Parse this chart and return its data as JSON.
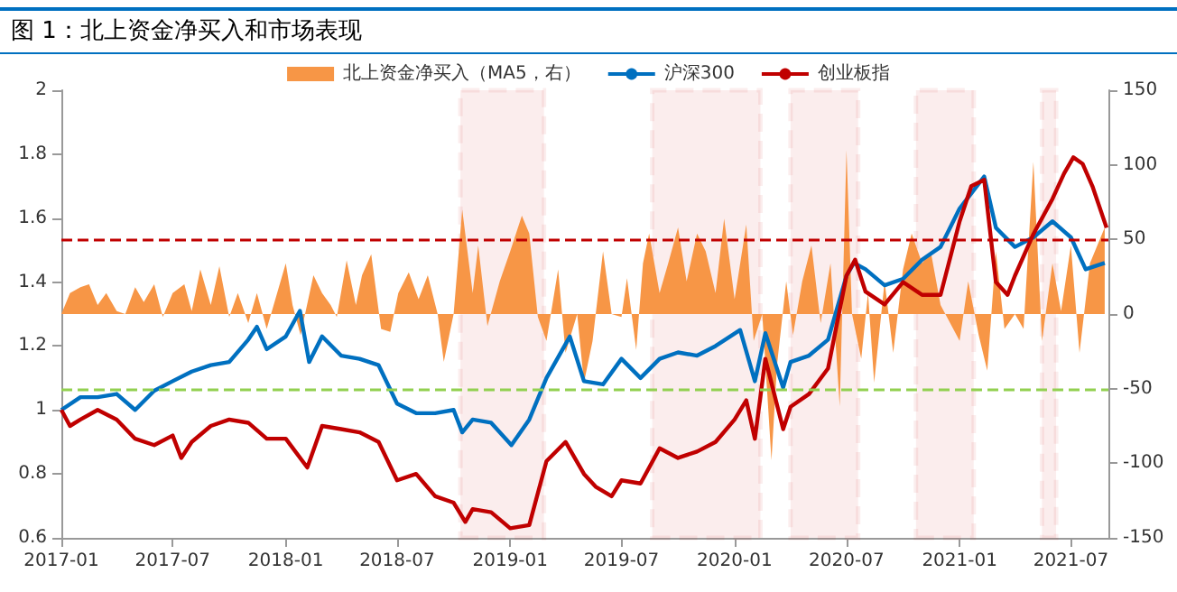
{
  "chart_data": {
    "type": "line",
    "title": "图 1：北上资金净买入和市场表现",
    "legend": "top",
    "grid": false,
    "marker": "none",
    "xlim": [
      "2017-01-01",
      "2021-08-31"
    ],
    "xticks": [
      "2017-01",
      "2017-07",
      "2018-01",
      "2018-07",
      "2019-01",
      "2019-07",
      "2020-01",
      "2020-07",
      "2021-01",
      "2021-07"
    ],
    "ylim": [
      0.6,
      2
    ],
    "yticks": [
      0.6,
      0.8,
      1,
      1.2,
      1.4,
      1.6,
      1.8,
      2
    ],
    "y2lim": [
      -150,
      150
    ],
    "y2ticks": [
      -150,
      -100,
      -50,
      0,
      50,
      100,
      150
    ],
    "series": [
      {
        "name": "北上资金净买入（MA5，右）",
        "type": "area",
        "axis": "y2",
        "color": "#f79646",
        "x": [
          "2017-01-01",
          "2017-01-15",
          "2017-02-01",
          "2017-02-15",
          "2017-03-01",
          "2017-03-15",
          "2017-04-01",
          "2017-04-15",
          "2017-05-01",
          "2017-05-15",
          "2017-06-01",
          "2017-06-15",
          "2017-07-01",
          "2017-07-20",
          "2017-08-01",
          "2017-08-15",
          "2017-09-01",
          "2017-09-15",
          "2017-10-01",
          "2017-10-15",
          "2017-11-01",
          "2017-11-15",
          "2017-12-01",
          "2018-01-01",
          "2018-01-12",
          "2018-01-25",
          "2018-02-15",
          "2018-03-01",
          "2018-03-15",
          "2018-03-25",
          "2018-04-10",
          "2018-04-25",
          "2018-05-05",
          "2018-05-20",
          "2018-06-05",
          "2018-06-20",
          "2018-07-03",
          "2018-07-20",
          "2018-08-05",
          "2018-08-20",
          "2018-09-05",
          "2018-09-15",
          "2018-10-01",
          "2018-10-15",
          "2018-11-01",
          "2018-11-10",
          "2018-11-25",
          "2018-12-15",
          "2019-01-01",
          "2019-01-20",
          "2019-02-01",
          "2019-02-15",
          "2019-03-01",
          "2019-03-20",
          "2019-04-01",
          "2019-04-20",
          "2019-05-01",
          "2019-05-15",
          "2019-06-01",
          "2019-06-15",
          "2019-07-01",
          "2019-07-10",
          "2019-07-25",
          "2019-08-05",
          "2019-08-15",
          "2019-09-01",
          "2019-09-15",
          "2019-10-01",
          "2019-10-15",
          "2019-11-01",
          "2019-11-15",
          "2019-12-01",
          "2019-12-15",
          "2020-01-01",
          "2020-01-20",
          "2020-02-01",
          "2020-02-15",
          "2020-03-01",
          "2020-03-10",
          "2020-03-25",
          "2020-04-05",
          "2020-04-20",
          "2020-05-05",
          "2020-05-20",
          "2020-06-05",
          "2020-06-20",
          "2020-07-01",
          "2020-07-10",
          "2020-07-25",
          "2020-08-05",
          "2020-08-15",
          "2020-09-01",
          "2020-09-15",
          "2020-10-01",
          "2020-10-15",
          "2020-11-01",
          "2020-11-15",
          "2020-12-01",
          "2021-01-01",
          "2021-01-15",
          "2021-02-01",
          "2021-02-15",
          "2021-03-01",
          "2021-03-15",
          "2021-04-01",
          "2021-04-15",
          "2021-05-01",
          "2021-05-15",
          "2021-06-01",
          "2021-06-15",
          "2021-07-01",
          "2021-07-15",
          "2021-08-01",
          "2021-08-25"
        ],
        "values": [
          0,
          14,
          18,
          20,
          6,
          14,
          2,
          0,
          18,
          8,
          20,
          -2,
          14,
          20,
          2,
          30,
          6,
          32,
          -2,
          14,
          -6,
          14,
          -10,
          34,
          6,
          -14,
          26,
          14,
          6,
          -2,
          36,
          6,
          26,
          40,
          -10,
          -12,
          14,
          28,
          10,
          26,
          0,
          -32,
          0,
          70,
          14,
          46,
          -8,
          22,
          42,
          66,
          54,
          -2,
          -18,
          30,
          -26,
          0,
          -46,
          -18,
          42,
          0,
          -2,
          24,
          -24,
          34,
          54,
          14,
          34,
          58,
          22,
          54,
          42,
          14,
          64,
          10,
          60,
          -18,
          0,
          -98,
          -34,
          22,
          -14,
          22,
          46,
          -6,
          34,
          -62,
          110,
          0,
          -30,
          14,
          -46,
          22,
          -26,
          30,
          54,
          34,
          42,
          6,
          -18,
          22,
          -14,
          -38,
          42,
          -10,
          0,
          -10,
          102,
          -18,
          34,
          2,
          46,
          -26,
          34,
          58
        ]
      },
      {
        "name": "沪深300",
        "color": "#0070c0",
        "x": [
          "2017-01-01",
          "2017-02-01",
          "2017-03-01",
          "2017-04-01",
          "2017-05-01",
          "2017-06-01",
          "2017-07-01",
          "2017-08-01",
          "2017-09-01",
          "2017-10-01",
          "2017-11-01",
          "2017-11-15",
          "2017-12-01",
          "2018-01-01",
          "2018-01-24",
          "2018-02-08",
          "2018-03-01",
          "2018-04-01",
          "2018-05-01",
          "2018-06-01",
          "2018-07-01",
          "2018-08-01",
          "2018-09-01",
          "2018-10-01",
          "2018-10-15",
          "2018-11-01",
          "2018-12-01",
          "2019-01-03",
          "2019-02-01",
          "2019-03-01",
          "2019-04-08",
          "2019-05-01",
          "2019-06-01",
          "2019-07-01",
          "2019-08-01",
          "2019-09-01",
          "2019-10-01",
          "2019-11-01",
          "2019-12-01",
          "2020-01-10",
          "2020-02-03",
          "2020-02-20",
          "2020-03-20",
          "2020-04-01",
          "2020-05-01",
          "2020-06-01",
          "2020-07-01",
          "2020-07-13",
          "2020-08-01",
          "2020-09-01",
          "2020-10-01",
          "2020-11-01",
          "2020-12-01",
          "2021-01-01",
          "2021-02-10",
          "2021-03-01",
          "2021-04-01",
          "2021-05-01",
          "2021-06-01",
          "2021-07-01",
          "2021-07-25",
          "2021-08-25"
        ],
        "values": [
          1.0,
          1.04,
          1.04,
          1.05,
          1.0,
          1.06,
          1.09,
          1.12,
          1.14,
          1.15,
          1.22,
          1.26,
          1.19,
          1.23,
          1.31,
          1.15,
          1.23,
          1.17,
          1.16,
          1.14,
          1.02,
          0.99,
          0.99,
          1.0,
          0.93,
          0.97,
          0.96,
          0.89,
          0.97,
          1.1,
          1.23,
          1.09,
          1.08,
          1.16,
          1.1,
          1.16,
          1.18,
          1.17,
          1.2,
          1.25,
          1.09,
          1.24,
          1.07,
          1.15,
          1.17,
          1.22,
          1.42,
          1.46,
          1.44,
          1.39,
          1.41,
          1.47,
          1.51,
          1.63,
          1.73,
          1.57,
          1.51,
          1.54,
          1.59,
          1.54,
          1.44,
          1.46
        ]
      },
      {
        "name": "创业板指",
        "color": "#c00000",
        "x": [
          "2017-01-01",
          "2017-01-15",
          "2017-02-01",
          "2017-03-01",
          "2017-04-01",
          "2017-05-01",
          "2017-06-01",
          "2017-07-01",
          "2017-07-15",
          "2017-08-01",
          "2017-09-01",
          "2017-10-01",
          "2017-11-01",
          "2017-12-01",
          "2018-01-01",
          "2018-02-05",
          "2018-03-01",
          "2018-04-01",
          "2018-05-01",
          "2018-06-01",
          "2018-07-01",
          "2018-08-01",
          "2018-09-01",
          "2018-10-01",
          "2018-10-20",
          "2018-11-01",
          "2018-12-01",
          "2019-01-01",
          "2019-02-01",
          "2019-03-01",
          "2019-04-01",
          "2019-05-01",
          "2019-05-20",
          "2019-06-15",
          "2019-07-01",
          "2019-08-01",
          "2019-09-01",
          "2019-10-01",
          "2019-11-01",
          "2019-12-01",
          "2020-01-01",
          "2020-01-20",
          "2020-02-03",
          "2020-02-20",
          "2020-03-20",
          "2020-04-01",
          "2020-05-01",
          "2020-06-01",
          "2020-07-01",
          "2020-07-15",
          "2020-08-01",
          "2020-09-01",
          "2020-10-01",
          "2020-11-01",
          "2020-12-01",
          "2021-01-01",
          "2021-01-20",
          "2021-02-10",
          "2021-03-01",
          "2021-03-20",
          "2021-04-01",
          "2021-05-01",
          "2021-06-01",
          "2021-06-20",
          "2021-07-05",
          "2021-07-20",
          "2021-08-05",
          "2021-08-28"
        ],
        "values": [
          1.0,
          0.95,
          0.97,
          1.0,
          0.97,
          0.91,
          0.89,
          0.92,
          0.85,
          0.9,
          0.95,
          0.97,
          0.96,
          0.91,
          0.91,
          0.82,
          0.95,
          0.94,
          0.93,
          0.9,
          0.78,
          0.8,
          0.73,
          0.71,
          0.65,
          0.69,
          0.68,
          0.63,
          0.64,
          0.84,
          0.9,
          0.8,
          0.76,
          0.73,
          0.78,
          0.77,
          0.88,
          0.85,
          0.87,
          0.9,
          0.97,
          1.03,
          0.91,
          1.16,
          0.94,
          1.01,
          1.05,
          1.13,
          1.42,
          1.47,
          1.37,
          1.33,
          1.4,
          1.36,
          1.36,
          1.59,
          1.7,
          1.72,
          1.4,
          1.36,
          1.42,
          1.55,
          1.66,
          1.74,
          1.79,
          1.77,
          1.7,
          1.57
        ]
      }
    ],
    "ref_lines": [
      {
        "axis": "y2",
        "value": 50,
        "color": "#c00000",
        "line_style": "dashed"
      },
      {
        "axis": "y2",
        "value": -50,
        "color": "#92d050",
        "line_style": "dashed"
      }
    ],
    "bands": [
      {
        "axis": "x",
        "from": "2018-10-12",
        "to": "2019-02-25",
        "color": "#c00000"
      },
      {
        "axis": "x",
        "from": "2019-08-20",
        "to": "2020-02-12",
        "color": "#c00000"
      },
      {
        "axis": "x",
        "from": "2020-04-01",
        "to": "2020-07-20",
        "color": "#c00000"
      },
      {
        "axis": "x",
        "from": "2020-10-22",
        "to": "2021-01-24",
        "color": "#c00000"
      },
      {
        "axis": "x",
        "from": "2021-05-15",
        "to": "2021-06-07",
        "color": "#c00000"
      }
    ]
  }
}
